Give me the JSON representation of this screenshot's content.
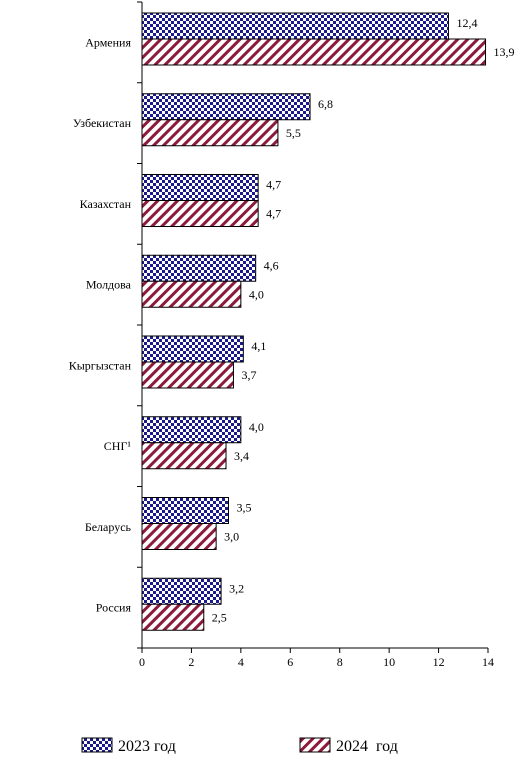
{
  "chart_data": {
    "type": "bar",
    "orientation": "horizontal",
    "categories": [
      "Армения",
      "Узбекистан",
      "Казахстан",
      "Молдова",
      "Кыргызстан",
      "СНГ¹",
      "Беларусь",
      "Россия"
    ],
    "series": [
      {
        "name": "2023 год",
        "values": [
          12.4,
          6.8,
          4.7,
          4.6,
          4.1,
          4.0,
          3.5,
          3.2
        ],
        "labels": [
          "12,4",
          "6,8",
          "4,7",
          "4,6",
          "4,1",
          "4,0",
          "3,5",
          "3,2"
        ],
        "color": "#1a1a8c",
        "pattern": "checkerboard"
      },
      {
        "name": "2024  год",
        "values": [
          13.9,
          5.5,
          4.7,
          4.0,
          3.7,
          3.4,
          3.0,
          2.5
        ],
        "labels": [
          "13,9",
          "5,5",
          "4,7",
          "4,0",
          "3,7",
          "3,4",
          "3,0",
          "2,5"
        ],
        "color": "#8b1a3c",
        "pattern": "diagonal-stripes"
      }
    ],
    "xlim": [
      0,
      14
    ],
    "xticks": [
      0,
      2,
      4,
      6,
      8,
      10,
      12,
      14
    ],
    "title": "",
    "xlabel": "",
    "ylabel": "",
    "grid": false,
    "legend_position": "bottom"
  }
}
